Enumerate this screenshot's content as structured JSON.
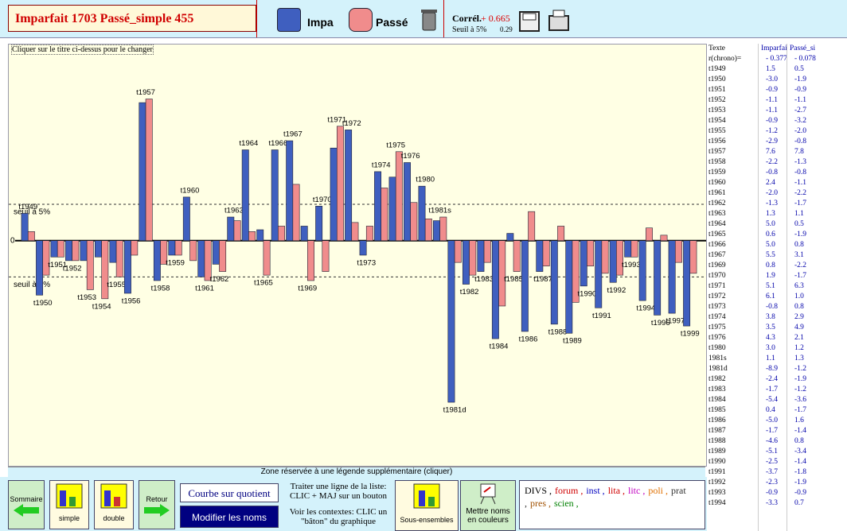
{
  "header": {
    "title": "Imparfait 1703  Passé_simple 455",
    "correl_label": "Corrél.",
    "correl_value": "+ 0.665",
    "seuil_label": "Seuil à 5%",
    "seuil_value": "0.29"
  },
  "chart_data": {
    "type": "bar",
    "note": "Cliquer sur le titre ci-dessus pour le changer",
    "categories": [
      "t1949",
      "t1950",
      "t1951",
      "t1952",
      "t1953",
      "t1954",
      "t1955",
      "t1956",
      "t1957",
      "t1958",
      "t1959",
      "t1960",
      "t1961",
      "t1962",
      "t1963",
      "t1964",
      "t1965",
      "t1966",
      "t1967",
      "t1969",
      "t1970",
      "t1971",
      "t1972",
      "t1973",
      "t1974",
      "t1975",
      "t1976",
      "t1980",
      "t1981s",
      "t1981d",
      "t1982",
      "t1983",
      "t1984",
      "t1985",
      "t1986",
      "t1987",
      "t1988",
      "t1989",
      "t1990",
      "t1991",
      "t1992",
      "t1993",
      "t1994",
      "t1996",
      "t1997",
      "t1999"
    ],
    "series": [
      {
        "name": "Impa",
        "color": "#3f5fbf",
        "values": [
          1.5,
          -3.0,
          -0.9,
          -1.1,
          -1.1,
          -0.9,
          -1.2,
          -2.9,
          7.6,
          -2.2,
          -0.8,
          2.4,
          -2.0,
          -1.3,
          1.3,
          5.0,
          0.6,
          5.0,
          5.5,
          0.8,
          1.9,
          5.1,
          6.1,
          -0.8,
          3.8,
          3.5,
          4.3,
          3.0,
          1.1,
          -8.9,
          -2.4,
          -1.7,
          -5.4,
          0.4,
          -5.0,
          -1.7,
          -4.6,
          -5.1,
          -2.5,
          -3.7,
          -2.3,
          -0.9,
          -3.3,
          -4.1,
          -4.0,
          -4.7
        ]
      },
      {
        "name": "Passé",
        "color": "#f08c8c",
        "values": [
          0.5,
          -1.9,
          -0.9,
          -1.1,
          -2.7,
          -3.2,
          -2.0,
          -0.8,
          7.8,
          -1.3,
          -0.8,
          -1.1,
          -2.2,
          -1.7,
          1.1,
          0.5,
          -1.9,
          0.8,
          3.1,
          -2.2,
          -1.7,
          6.3,
          1.0,
          0.8,
          2.9,
          4.9,
          2.1,
          1.2,
          1.3,
          -1.2,
          -1.9,
          -1.2,
          -3.6,
          -1.7,
          1.6,
          -1.4,
          0.8,
          -3.4,
          -1.4,
          -1.8,
          -1.9,
          -0.9,
          0.7,
          0.3,
          -1.2,
          -1.8
        ]
      }
    ],
    "ylim": [
      -12.4,
      10.8
    ],
    "yticks": [
      0
    ],
    "thresholds": [
      2.0,
      -2.0
    ],
    "threshold_label": "seuil à 5%",
    "legend_zone": "Zone réservée à une légende supplémentaire (cliquer)"
  },
  "table": {
    "header": [
      "Texte",
      "Imparfai",
      "Passé_si"
    ],
    "rows": [
      [
        "r(chrono)=",
        "- 0.377",
        "- 0.078"
      ],
      [
        "t1949",
        "1.5",
        "0.5"
      ],
      [
        "t1950",
        "-3.0",
        "-1.9"
      ],
      [
        "t1951",
        "-0.9",
        "-0.9"
      ],
      [
        "t1952",
        "-1.1",
        "-1.1"
      ],
      [
        "t1953",
        "-1.1",
        "-2.7"
      ],
      [
        "t1954",
        "-0.9",
        "-3.2"
      ],
      [
        "t1955",
        "-1.2",
        "-2.0"
      ],
      [
        "t1956",
        "-2.9",
        "-0.8"
      ],
      [
        "t1957",
        "7.6",
        "7.8"
      ],
      [
        "t1958",
        "-2.2",
        "-1.3"
      ],
      [
        "t1959",
        "-0.8",
        "-0.8"
      ],
      [
        "t1960",
        "2.4",
        "-1.1"
      ],
      [
        "t1961",
        "-2.0",
        "-2.2"
      ],
      [
        "t1962",
        "-1.3",
        "-1.7"
      ],
      [
        "t1963",
        "1.3",
        "1.1"
      ],
      [
        "t1964",
        "5.0",
        "0.5"
      ],
      [
        "t1965",
        "0.6",
        "-1.9"
      ],
      [
        "t1966",
        "5.0",
        "0.8"
      ],
      [
        "t1967",
        "5.5",
        "3.1"
      ],
      [
        "t1969",
        "0.8",
        "-2.2"
      ],
      [
        "t1970",
        "1.9",
        "-1.7"
      ],
      [
        "t1971",
        "5.1",
        "6.3"
      ],
      [
        "t1972",
        "6.1",
        "1.0"
      ],
      [
        "t1973",
        "-0.8",
        "0.8"
      ],
      [
        "t1974",
        "3.8",
        "2.9"
      ],
      [
        "t1975",
        "3.5",
        "4.9"
      ],
      [
        "t1976",
        "4.3",
        "2.1"
      ],
      [
        "t1980",
        "3.0",
        "1.2"
      ],
      [
        "1981s",
        "1.1",
        "1.3"
      ],
      [
        "1981d",
        "-8.9",
        "-1.2"
      ],
      [
        "t1982",
        "-2.4",
        "-1.9"
      ],
      [
        "t1983",
        "-1.7",
        "-1.2"
      ],
      [
        "t1984",
        "-5.4",
        "-3.6"
      ],
      [
        "t1985",
        "0.4",
        "-1.7"
      ],
      [
        "t1986",
        "-5.0",
        "1.6"
      ],
      [
        "t1987",
        "-1.7",
        "-1.4"
      ],
      [
        "t1988",
        "-4.6",
        "0.8"
      ],
      [
        "t1989",
        "-5.1",
        "-3.4"
      ],
      [
        "t1990",
        "-2.5",
        "-1.4"
      ],
      [
        "t1991",
        "-3.7",
        "-1.8"
      ],
      [
        "t1992",
        "-2.3",
        "-1.9"
      ],
      [
        "t1993",
        "-0.9",
        "-0.9"
      ],
      [
        "t1994",
        "-3.3",
        "0.7"
      ]
    ]
  },
  "toolbar": {
    "sommaire": "Sommaire",
    "simple": "simple",
    "double": "double",
    "retour": "Retour",
    "courbe": "Courbe sur quotient",
    "modifier": "Modifier les noms",
    "help1": "Traiter une ligne de la liste: CLIC + MAJ sur un bouton",
    "help2": "Voir les contextes: CLIC un \"bâton\" du graphique",
    "sous": "Sous-ensembles",
    "mettre": "Mettre noms en couleurs",
    "divs": [
      {
        "text": "DIVS ,",
        "color": "#000000"
      },
      {
        "text": "forum ,",
        "color": "#d00000"
      },
      {
        "text": "inst ,",
        "color": "#0000c0"
      },
      {
        "text": "lita ,",
        "color": "#d00000"
      },
      {
        "text": "litc ,",
        "color": "#c000c0"
      },
      {
        "text": "poli ,",
        "color": "#e07000"
      },
      {
        "text": "prat ,",
        "color": "#303030"
      },
      {
        "text": "pres ,",
        "color": "#a05000"
      },
      {
        "text": "scien ,",
        "color": "#008000"
      }
    ]
  }
}
